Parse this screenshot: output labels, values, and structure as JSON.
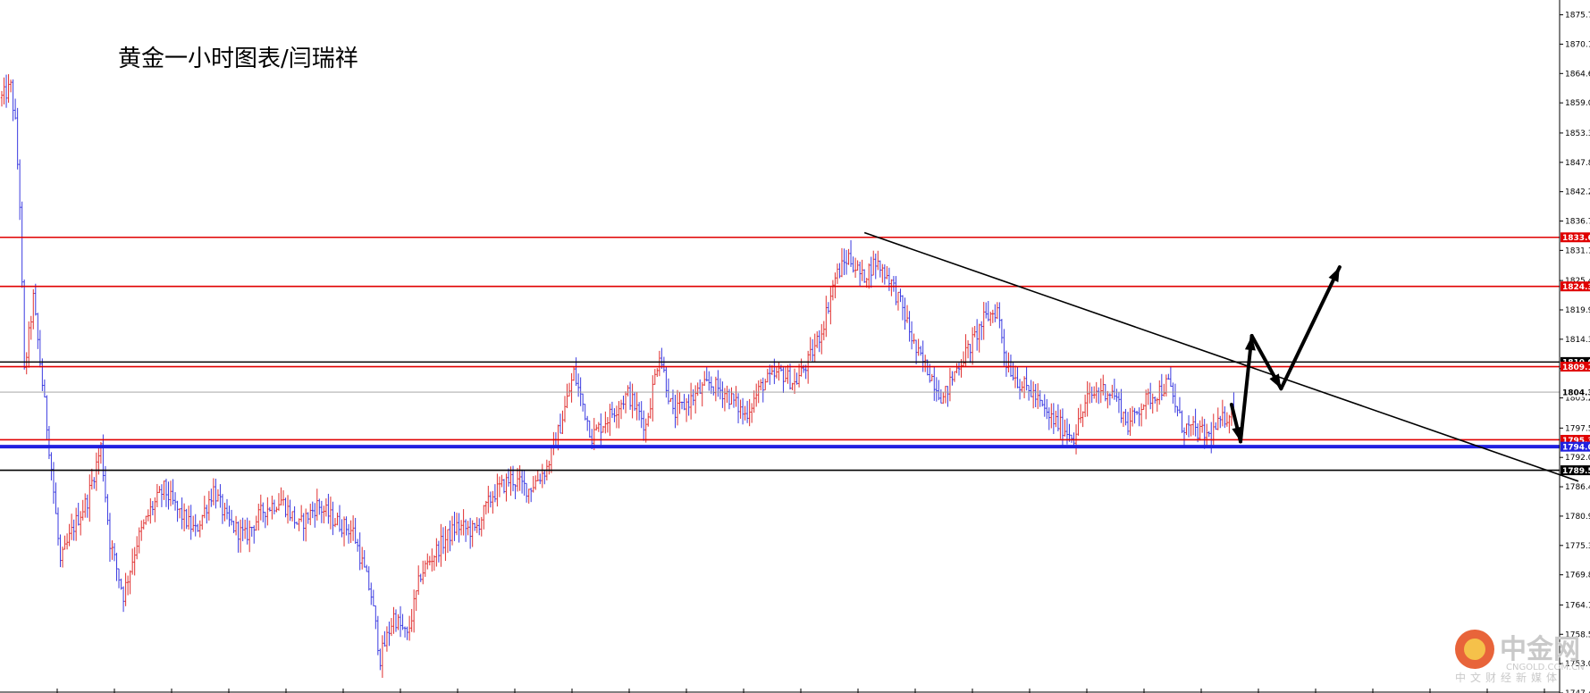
{
  "chart_data": {
    "type": "candlestick",
    "title": "黄金一小时图表/闫瑞祥",
    "ylim": [
      1747.45,
      1878.5
    ],
    "y_ticks": [
      "1875.70",
      "1870.15",
      "1864.60",
      "1859.05",
      "1853.35",
      "1847.80",
      "1842.25",
      "1836.70",
      "1831.15",
      "1825.45",
      "1819.90",
      "1814.35",
      "1808.80",
      "1803.25",
      "1797.55",
      "1792.00",
      "1786.45",
      "1780.90",
      "1775.35",
      "1769.80",
      "1764.10",
      "1758.55",
      "1753.00",
      "1747.45"
    ],
    "horizontal_levels": [
      {
        "value": 1833.62,
        "label": "1833.62",
        "color": "#e00000"
      },
      {
        "value": 1824.34,
        "label": "1824.34",
        "color": "#e00000"
      },
      {
        "value": 1810.04,
        "label": "1810.04",
        "color": "#000000"
      },
      {
        "value": 1809.17,
        "label": "1809.17",
        "color": "#e00000"
      },
      {
        "value": 1804.35,
        "label": "1804.35",
        "color": "#9a9a9a"
      },
      {
        "value": 1795.33,
        "label": "1795.33",
        "color": "#e00000"
      },
      {
        "value": 1794.03,
        "label": "1794.03",
        "color": "#2020e0"
      },
      {
        "value": 1789.57,
        "label": "1789.57",
        "color": "#000000"
      }
    ],
    "price_path": [
      {
        "bar": 0,
        "price": 1860
      },
      {
        "bar": 4,
        "price": 1862
      },
      {
        "bar": 6,
        "price": 1855
      },
      {
        "bar": 8,
        "price": 1840
      },
      {
        "bar": 10,
        "price": 1808
      },
      {
        "bar": 14,
        "price": 1822
      },
      {
        "bar": 18,
        "price": 1806
      },
      {
        "bar": 22,
        "price": 1790
      },
      {
        "bar": 26,
        "price": 1772
      },
      {
        "bar": 32,
        "price": 1779
      },
      {
        "bar": 38,
        "price": 1784
      },
      {
        "bar": 44,
        "price": 1794
      },
      {
        "bar": 48,
        "price": 1776
      },
      {
        "bar": 54,
        "price": 1766
      },
      {
        "bar": 60,
        "price": 1776
      },
      {
        "bar": 66,
        "price": 1782
      },
      {
        "bar": 72,
        "price": 1786
      },
      {
        "bar": 78,
        "price": 1782
      },
      {
        "bar": 86,
        "price": 1778
      },
      {
        "bar": 94,
        "price": 1786
      },
      {
        "bar": 100,
        "price": 1780
      },
      {
        "bar": 108,
        "price": 1777
      },
      {
        "bar": 116,
        "price": 1782
      },
      {
        "bar": 124,
        "price": 1784
      },
      {
        "bar": 132,
        "price": 1779
      },
      {
        "bar": 140,
        "price": 1783
      },
      {
        "bar": 148,
        "price": 1780
      },
      {
        "bar": 156,
        "price": 1778
      },
      {
        "bar": 164,
        "price": 1766
      },
      {
        "bar": 168,
        "price": 1754
      },
      {
        "bar": 174,
        "price": 1762
      },
      {
        "bar": 180,
        "price": 1758
      },
      {
        "bar": 186,
        "price": 1770
      },
      {
        "bar": 194,
        "price": 1775
      },
      {
        "bar": 202,
        "price": 1779
      },
      {
        "bar": 210,
        "price": 1778
      },
      {
        "bar": 218,
        "price": 1785
      },
      {
        "bar": 226,
        "price": 1788
      },
      {
        "bar": 234,
        "price": 1786
      },
      {
        "bar": 242,
        "price": 1790
      },
      {
        "bar": 248,
        "price": 1798
      },
      {
        "bar": 254,
        "price": 1808
      },
      {
        "bar": 258,
        "price": 1802
      },
      {
        "bar": 262,
        "price": 1796
      },
      {
        "bar": 270,
        "price": 1800
      },
      {
        "bar": 278,
        "price": 1804
      },
      {
        "bar": 286,
        "price": 1798
      },
      {
        "bar": 292,
        "price": 1812
      },
      {
        "bar": 298,
        "price": 1800
      },
      {
        "bar": 306,
        "price": 1803
      },
      {
        "bar": 314,
        "price": 1806
      },
      {
        "bar": 322,
        "price": 1804
      },
      {
        "bar": 330,
        "price": 1800
      },
      {
        "bar": 338,
        "price": 1806
      },
      {
        "bar": 346,
        "price": 1808
      },
      {
        "bar": 352,
        "price": 1806
      },
      {
        "bar": 358,
        "price": 1810
      },
      {
        "bar": 364,
        "price": 1816
      },
      {
        "bar": 370,
        "price": 1826
      },
      {
        "bar": 376,
        "price": 1830
      },
      {
        "bar": 382,
        "price": 1826
      },
      {
        "bar": 388,
        "price": 1829
      },
      {
        "bar": 394,
        "price": 1826
      },
      {
        "bar": 400,
        "price": 1820
      },
      {
        "bar": 406,
        "price": 1812
      },
      {
        "bar": 412,
        "price": 1808
      },
      {
        "bar": 418,
        "price": 1803
      },
      {
        "bar": 424,
        "price": 1809
      },
      {
        "bar": 430,
        "price": 1813
      },
      {
        "bar": 436,
        "price": 1818
      },
      {
        "bar": 442,
        "price": 1820
      },
      {
        "bar": 446,
        "price": 1810
      },
      {
        "bar": 452,
        "price": 1806
      },
      {
        "bar": 458,
        "price": 1804
      },
      {
        "bar": 464,
        "price": 1800
      },
      {
        "bar": 470,
        "price": 1798
      },
      {
        "bar": 476,
        "price": 1796
      },
      {
        "bar": 482,
        "price": 1803
      },
      {
        "bar": 488,
        "price": 1805
      },
      {
        "bar": 494,
        "price": 1804
      },
      {
        "bar": 500,
        "price": 1798
      },
      {
        "bar": 506,
        "price": 1802
      },
      {
        "bar": 512,
        "price": 1804
      },
      {
        "bar": 518,
        "price": 1806
      },
      {
        "bar": 524,
        "price": 1798
      },
      {
        "bar": 530,
        "price": 1797
      },
      {
        "bar": 536,
        "price": 1796
      },
      {
        "bar": 542,
        "price": 1799
      },
      {
        "bar": 548,
        "price": 1802
      }
    ],
    "trendline": {
      "from": {
        "bar": 383,
        "price": 1834.5
      },
      "to": {
        "bar": 700,
        "price": 1787.5
      }
    },
    "projection_path": [
      {
        "bar": 546,
        "price": 1802
      },
      {
        "bar": 550,
        "price": 1795
      },
      {
        "bar": 555,
        "price": 1815
      },
      {
        "bar": 568,
        "price": 1805
      },
      {
        "bar": 594,
        "price": 1828
      }
    ]
  },
  "watermark": {
    "name": "中金网",
    "domain": "CNGOLD.COM.CN",
    "sub": "中文财经新媒体"
  },
  "colors": {
    "bull_bar": "#e03030",
    "bear_bar": "#3a3ae0",
    "up_level": "#e00000",
    "support_level": "#2020e0",
    "neutral_level": "#000000"
  }
}
